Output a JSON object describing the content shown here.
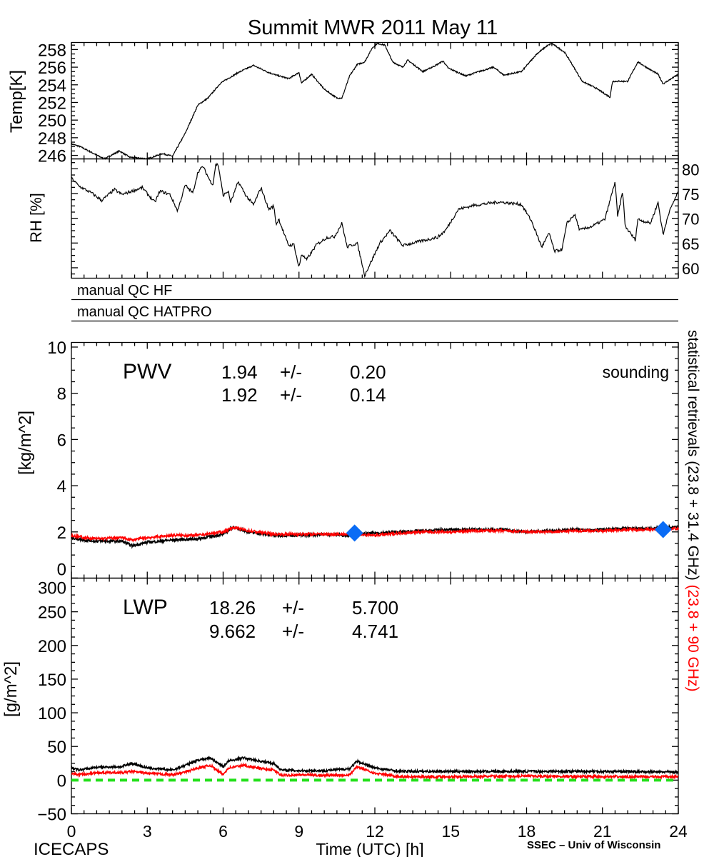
{
  "title": "Summit MWR 2011 May 11",
  "footer": {
    "left": "ICECAPS",
    "center": "Time (UTC) [h]",
    "right": "SSEC – Univ of Wisconsin"
  },
  "side_label": {
    "black": "statistical retrievals (23.8 + 31.4 GHz)",
    "red": "(23.8 + 90 GHz)"
  },
  "qc_rows": [
    "manual QC HF",
    "manual QC HATPRO"
  ],
  "colors": {
    "series1": "#000000",
    "series2": "#ff0000",
    "sounding": "#0a6cf5",
    "zero_line": "#22e01a"
  },
  "chart_data": [
    {
      "type": "line",
      "name": "temperature",
      "ylabel": "Temp[K]",
      "ylim": [
        245.6,
        258.8
      ],
      "yticks": [
        "246",
        "248",
        "250",
        "252",
        "254",
        "256",
        "258"
      ],
      "ytick_side": "left",
      "xlim": [
        0,
        24
      ],
      "x": [
        0,
        0.34,
        1.3,
        1.9,
        2.3,
        3.0,
        3.6,
        4.0,
        4.5,
        5.0,
        5.4,
        5.9,
        6.6,
        7.2,
        7.8,
        8.1,
        8.6,
        9.0,
        9.1,
        9.5,
        10.0,
        10.5,
        10.7,
        11.0,
        11.3,
        11.6,
        11.9,
        12.1,
        12.4,
        12.7,
        13.1,
        13.3,
        13.9,
        14.4,
        14.7,
        14.9,
        15.6,
        16.0,
        16.7,
        17.1,
        17.8,
        18.4,
        18.8,
        19.0,
        19.5,
        19.7,
        20.2,
        20.7,
        21.3,
        21.4,
        22.0,
        22.4,
        22.9,
        23.2,
        23.4,
        24.0
      ],
      "y": [
        247.3,
        247.0,
        245.6,
        246.5,
        245.8,
        245.6,
        246.2,
        245.9,
        248.5,
        251.7,
        252.5,
        254.2,
        255.4,
        256.2,
        255.4,
        255.1,
        254.7,
        255.4,
        254.2,
        255.2,
        253.5,
        252.5,
        252.5,
        255.0,
        256.3,
        256.6,
        258.2,
        258.7,
        258.5,
        256.6,
        256.0,
        256.8,
        255.5,
        256.2,
        256.7,
        255.9,
        255.0,
        255.4,
        256.0,
        255.1,
        255.5,
        257.5,
        258.4,
        258.7,
        257.7,
        256.8,
        254.4,
        253.7,
        252.6,
        254.4,
        254.4,
        256.6,
        255.7,
        255.2,
        254.1,
        255.2
      ]
    },
    {
      "type": "line",
      "name": "relative-humidity",
      "ylabel": "RH [%]",
      "ylim": [
        57.9,
        82.0
      ],
      "yticks": [
        "60",
        "65",
        "70",
        "75",
        "80"
      ],
      "ytick_side": "right",
      "xlim": [
        0,
        24
      ],
      "x": [
        0,
        0.3,
        0.8,
        1.2,
        1.7,
        2.0,
        2.8,
        3.3,
        3.5,
        3.9,
        4.2,
        4.5,
        4.8,
        5.0,
        5.2,
        5.5,
        5.6,
        5.7,
        5.8,
        6.0,
        6.2,
        6.3,
        6.6,
        6.9,
        7.2,
        7.5,
        7.8,
        8.0,
        8.1,
        8.2,
        8.5,
        8.6,
        8.8,
        9.0,
        9.1,
        9.3,
        9.7,
        10.1,
        10.4,
        10.7,
        10.9,
        11.3,
        11.6,
        12.2,
        12.6,
        13.1,
        14.0,
        14.5,
        14.8,
        15.3,
        15.9,
        16.9,
        17.8,
        18.2,
        18.6,
        18.9,
        19.1,
        19.4,
        19.6,
        19.9,
        20.1,
        20.6,
        21.1,
        21.5,
        21.6,
        21.8,
        21.9,
        22.3,
        22.4,
        22.9,
        23.2,
        23.4,
        23.6,
        24.0
      ],
      "y": [
        78.1,
        76.5,
        75.1,
        73.6,
        75.8,
        74.8,
        76.2,
        73.2,
        75.5,
        74.8,
        71.5,
        76.7,
        75.1,
        79.3,
        80.5,
        77.4,
        76.9,
        80.7,
        81.0,
        74.6,
        75.5,
        73.2,
        77.4,
        74.6,
        72.7,
        76.2,
        71.8,
        72.5,
        68.7,
        69.9,
        65.6,
        64.5,
        64.7,
        60.0,
        62.8,
        61.6,
        64.7,
        66.1,
        66.3,
        69.0,
        64.2,
        65.0,
        58.5,
        65.0,
        67.5,
        64.5,
        65.6,
        66.2,
        67.6,
        71.8,
        72.6,
        73.3,
        72.8,
        69.4,
        64.2,
        67.0,
        63.3,
        63.7,
        69.0,
        70.8,
        67.6,
        68.4,
        69.8,
        77.4,
        70.3,
        75.4,
        68.4,
        65.6,
        69.8,
        69.0,
        73.2,
        66.6,
        70.8,
        75.5
      ]
    },
    {
      "type": "line",
      "name": "pwv",
      "panel_label": "PWV",
      "ylabel": "[kg/m^2]",
      "ylim": [
        0,
        10.2
      ],
      "yticks": [
        "0",
        "2",
        "4",
        "6",
        "8",
        "10"
      ],
      "xlim": [
        0,
        24
      ],
      "stats": [
        {
          "mean": "1.94",
          "pm": "+/-",
          "std": "0.20"
        },
        {
          "mean": "1.92",
          "pm": "+/-",
          "std": "0.14"
        }
      ],
      "series": [
        {
          "name": "23.8 + 31.4 GHz",
          "x": [
            0,
            0.5,
            1,
            2,
            2.4,
            3,
            3.5,
            4,
            5,
            6,
            6.4,
            7,
            8,
            9,
            10,
            11,
            12,
            13,
            14,
            15,
            16,
            17,
            18,
            19,
            20,
            21,
            22,
            23,
            24
          ],
          "y": [
            1.75,
            1.65,
            1.6,
            1.6,
            1.4,
            1.55,
            1.6,
            1.65,
            1.7,
            1.9,
            2.2,
            2.0,
            1.85,
            1.85,
            1.9,
            1.85,
            1.95,
            2.0,
            2.05,
            2.1,
            2.1,
            2.1,
            2.0,
            2.05,
            2.1,
            2.1,
            2.15,
            2.15,
            2.25
          ]
        },
        {
          "name": "23.8 + 90 GHz",
          "x": [
            0,
            0.5,
            1,
            2,
            2.4,
            3,
            3.5,
            4,
            5,
            6,
            6.4,
            7,
            8,
            9,
            10,
            11,
            12,
            13,
            14,
            15,
            16,
            17,
            18,
            19,
            20,
            21,
            22,
            23,
            24
          ],
          "y": [
            1.85,
            1.75,
            1.7,
            1.75,
            1.65,
            1.75,
            1.8,
            1.85,
            1.85,
            2.0,
            2.2,
            2.05,
            1.9,
            1.9,
            1.9,
            1.9,
            1.85,
            1.95,
            2.0,
            2.0,
            2.05,
            2.05,
            2.0,
            2.0,
            2.05,
            2.05,
            2.1,
            2.1,
            2.15
          ]
        }
      ],
      "sounding": {
        "label": "sounding",
        "x": [
          11.2,
          23.4
        ],
        "y": [
          1.95,
          2.1
        ]
      }
    },
    {
      "type": "line",
      "name": "lwp",
      "panel_label": "LWP",
      "ylabel": "[g/m^2]",
      "ylim": [
        -50,
        300
      ],
      "yticks": [
        "-50",
        "0",
        "50",
        "100",
        "150",
        "200",
        "250",
        "300"
      ],
      "xlim": [
        0,
        24
      ],
      "zero_line": 0,
      "stats": [
        {
          "mean": "18.26",
          "pm": "+/-",
          "std": "5.700"
        },
        {
          "mean": "9.662",
          "pm": "+/-",
          "std": "4.741"
        }
      ],
      "series": [
        {
          "name": "23.8 + 31.4 GHz",
          "x": [
            0,
            0.3,
            1,
            2,
            2.4,
            3,
            4,
            4.5,
            5,
            5.5,
            6,
            6.2,
            6.8,
            7.5,
            8,
            8.3,
            9,
            10,
            11,
            11.3,
            12,
            13,
            15,
            18,
            21,
            24
          ],
          "y": [
            18,
            15,
            19,
            20,
            25,
            18,
            15,
            22,
            30,
            33,
            20,
            28,
            33,
            28,
            25,
            15,
            14,
            14,
            17,
            28,
            18,
            13,
            13,
            13,
            13,
            12
          ]
        },
        {
          "name": "23.8 + 90 GHz",
          "x": [
            0,
            0.3,
            1,
            2,
            2.4,
            3,
            4,
            4.5,
            5,
            5.5,
            6,
            6.2,
            6.8,
            7.5,
            8,
            8.3,
            9,
            10,
            11,
            11.3,
            12,
            13,
            15,
            18,
            21,
            24
          ],
          "y": [
            10,
            8,
            11,
            11,
            13,
            10,
            8,
            12,
            18,
            22,
            8,
            18,
            22,
            17,
            15,
            7,
            8,
            7,
            8,
            20,
            10,
            5,
            5,
            6,
            5,
            5
          ]
        }
      ]
    }
  ],
  "xaxis": {
    "label": "Time (UTC) [h]",
    "ticks": [
      "0",
      "3",
      "6",
      "9",
      "12",
      "15",
      "18",
      "21",
      "24"
    ]
  }
}
